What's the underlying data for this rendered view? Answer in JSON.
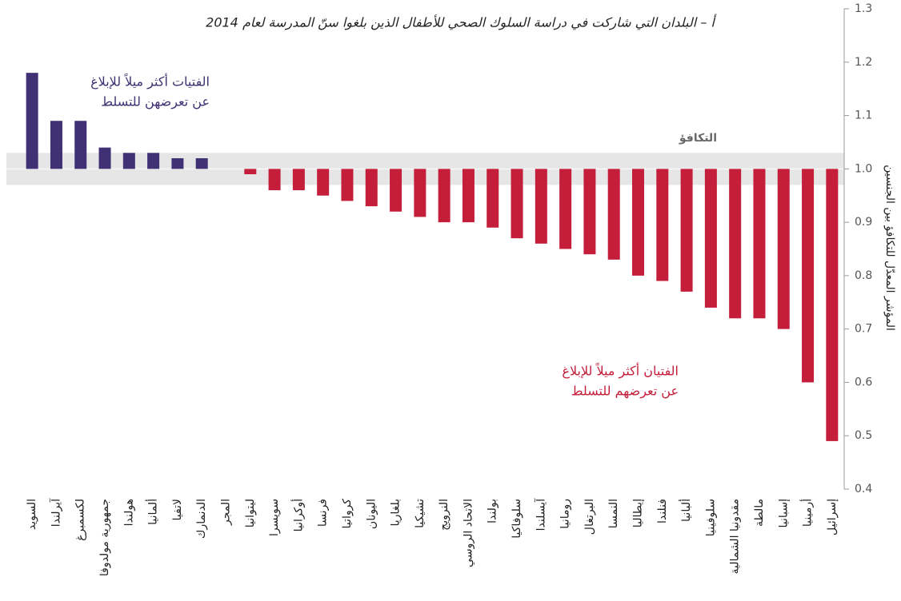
{
  "chart_data": {
    "type": "bar",
    "title": "أ – البلدان التي شاركت في دراسة السلوك الصحي للأطفال الذين بلغوا سنّ المدرسة لعام 2014",
    "y_axis_label": "المؤشر المعدّل للتكافؤ بين الجنسين",
    "categories": [
      "السويد",
      "آيرلندا",
      "لكسمبرغ",
      "جمهورية مولدوفا",
      "هولندا",
      "ألمانيا",
      "لاتفيا",
      "الدنمارك",
      "المجر",
      "ليتوانيا",
      "سويسرا",
      "أوكرانيا",
      "فرنسا",
      "كرواتيا",
      "اليونان",
      "بلغاريا",
      "تشيكيا",
      "النرويج",
      "الاتحاد الروسي",
      "بولندا",
      "سلوفاكيا",
      "آيسلندا",
      "رومانيا",
      "البرتغال",
      "النمسا",
      "إيطاليا",
      "فنلندا",
      "ألبانيا",
      "سلوفينيا",
      "مقدونيا الشمالية",
      "مالطة",
      "إسبانيا",
      "أرمينيا",
      "إسرائيل"
    ],
    "values": [
      1.18,
      1.09,
      1.09,
      1.04,
      1.03,
      1.03,
      1.02,
      1.02,
      1.0,
      0.99,
      0.96,
      0.96,
      0.95,
      0.94,
      0.93,
      0.92,
      0.91,
      0.9,
      0.9,
      0.89,
      0.87,
      0.86,
      0.85,
      0.84,
      0.83,
      0.8,
      0.79,
      0.77,
      0.74,
      0.72,
      0.72,
      0.7,
      0.6,
      0.49
    ],
    "color_above": "#3f3173",
    "color_below": "#c41e3a",
    "reference": {
      "label": "التكافؤ",
      "value": 1.0,
      "band": [
        0.97,
        1.03
      ]
    },
    "annotations": [
      {
        "lines": [
          "الفتيات أكثر ميلاً للإبلاغ",
          "عن تعرضهن للتسلط"
        ],
        "color": "#3f3173"
      },
      {
        "lines": [
          "الفتيان أكثر ميلاً للإبلاغ",
          "عن تعرضهم للتسلط"
        ],
        "color": "#c41e3a"
      }
    ],
    "ylim": [
      0.4,
      1.3
    ],
    "yticks": [
      {
        "value": 0.4,
        "label": "0.4"
      },
      {
        "value": 0.5,
        "label": "0.5"
      },
      {
        "value": 0.6,
        "label": "0.6"
      },
      {
        "value": 0.7,
        "label": "0.7"
      },
      {
        "value": 0.8,
        "label": "0.8"
      },
      {
        "value": 0.9,
        "label": "0.9"
      },
      {
        "value": 1.0,
        "label": "1.0"
      },
      {
        "value": 1.1,
        "label": "1.1"
      },
      {
        "value": 1.2,
        "label": "1.2"
      },
      {
        "value": 1.3,
        "label": "1.3"
      }
    ]
  }
}
